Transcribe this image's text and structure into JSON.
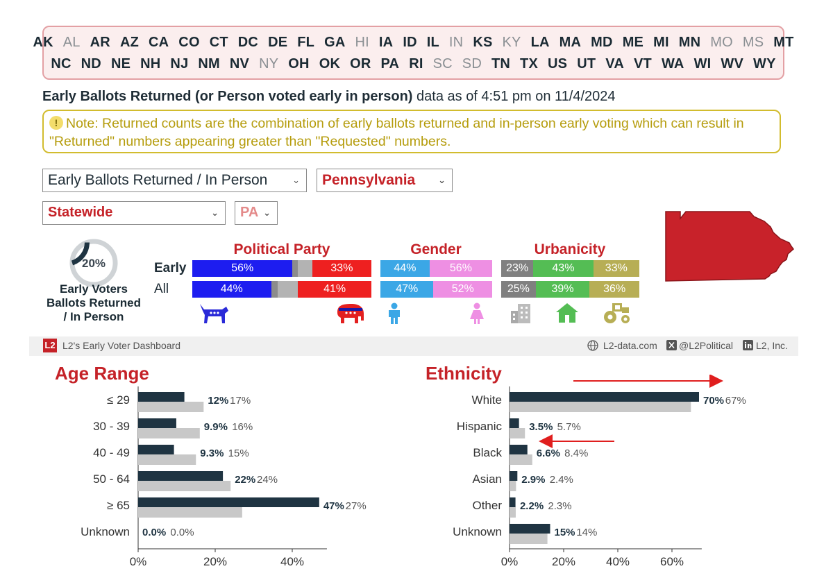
{
  "states": {
    "row1": [
      {
        "code": "AK",
        "active": true
      },
      {
        "code": "AL",
        "active": false
      },
      {
        "code": "AR",
        "active": true
      },
      {
        "code": "AZ",
        "active": true
      },
      {
        "code": "CA",
        "active": true
      },
      {
        "code": "CO",
        "active": true
      },
      {
        "code": "CT",
        "active": true
      },
      {
        "code": "DC",
        "active": true
      },
      {
        "code": "DE",
        "active": true
      },
      {
        "code": "FL",
        "active": true
      },
      {
        "code": "GA",
        "active": true
      },
      {
        "code": "HI",
        "active": false
      },
      {
        "code": "IA",
        "active": true
      },
      {
        "code": "ID",
        "active": true
      },
      {
        "code": "IL",
        "active": true
      },
      {
        "code": "IN",
        "active": false
      },
      {
        "code": "KS",
        "active": true
      },
      {
        "code": "KY",
        "active": false
      },
      {
        "code": "LA",
        "active": true
      },
      {
        "code": "MA",
        "active": true
      },
      {
        "code": "MD",
        "active": true
      },
      {
        "code": "ME",
        "active": true
      },
      {
        "code": "MI",
        "active": true
      },
      {
        "code": "MN",
        "active": true
      },
      {
        "code": "MO",
        "active": false
      },
      {
        "code": "MS",
        "active": false
      },
      {
        "code": "MT",
        "active": true
      }
    ],
    "row2": [
      {
        "code": "NC",
        "active": true
      },
      {
        "code": "ND",
        "active": true
      },
      {
        "code": "NE",
        "active": true
      },
      {
        "code": "NH",
        "active": true
      },
      {
        "code": "NJ",
        "active": true
      },
      {
        "code": "NM",
        "active": true
      },
      {
        "code": "NV",
        "active": true
      },
      {
        "code": "NY",
        "active": false
      },
      {
        "code": "OH",
        "active": true
      },
      {
        "code": "OK",
        "active": true
      },
      {
        "code": "OR",
        "active": true
      },
      {
        "code": "PA",
        "active": true
      },
      {
        "code": "RI",
        "active": true
      },
      {
        "code": "SC",
        "active": false
      },
      {
        "code": "SD",
        "active": false
      },
      {
        "code": "TN",
        "active": true
      },
      {
        "code": "TX",
        "active": true
      },
      {
        "code": "US",
        "active": true
      },
      {
        "code": "UT",
        "active": true
      },
      {
        "code": "VA",
        "active": true
      },
      {
        "code": "VT",
        "active": true
      },
      {
        "code": "WA",
        "active": true
      },
      {
        "code": "WI",
        "active": true
      },
      {
        "code": "WV",
        "active": true
      },
      {
        "code": "WY",
        "active": true
      }
    ]
  },
  "headline": {
    "bold": "Early Ballots Returned (or Person voted early in person)",
    "rest": " data as of 4:51 pm on 11/4/2024"
  },
  "note": {
    "icon": "!",
    "text": "Note: Returned counts are the combination of early ballots returned and in-person early voting which can result in \"Returned\" numbers appearing greater than \"Requested\" numbers."
  },
  "selects": {
    "type": "Early Ballots Returned / In Person",
    "state": "Pennsylvania",
    "district": "Statewide",
    "code": "PA",
    "caret": "⌄"
  },
  "summary": {
    "percent": "20%",
    "percent_value": 20,
    "label_line1": "Early Voters",
    "label_line2": "Ballots Returned",
    "label_line3": "/ In Person"
  },
  "breakdown": {
    "row_labels": {
      "early": "Early",
      "all": "All"
    },
    "sections": {
      "party": "Political Party",
      "gender": "Gender",
      "urbanicity": "Urbanicity"
    },
    "party": {
      "early": {
        "dem": "56%",
        "dem_value": 56,
        "other_value": 11,
        "rep": "33%",
        "rep_value": 33
      },
      "all": {
        "dem": "44%",
        "dem_value": 44,
        "other_value": 15,
        "rep": "41%",
        "rep_value": 41
      }
    },
    "gender": {
      "early": {
        "male": "44%",
        "male_value": 44,
        "female": "56%",
        "female_value": 56
      },
      "all": {
        "male": "47%",
        "male_value": 47,
        "female": "52%",
        "female_value": 52
      }
    },
    "urbanicity": {
      "early": {
        "urban": "23%",
        "urban_value": 23,
        "suburban": "43%",
        "suburban_value": 43,
        "rural": "33%",
        "rural_value": 33
      },
      "all": {
        "urban": "25%",
        "urban_value": 25,
        "suburban": "39%",
        "suburban_value": 39,
        "rural": "36%",
        "rural_value": 36
      }
    },
    "colors": {
      "dem": "#1d1df0",
      "rep": "#ee2020",
      "other1": "#8c8c8c",
      "other2": "#b3b3b3",
      "male": "#3ba7e6",
      "female": "#ee8fe3",
      "urban": "#808080",
      "suburban": "#54bd54",
      "rural": "#b7ae55"
    }
  },
  "footer": {
    "logo": "L2",
    "dashboard": "L2's Early Voter Dashboard",
    "site": "L2-data.com",
    "twitter": "@L2Political",
    "company": "L2, Inc."
  },
  "age_title": "Age Range",
  "ethnicity_title": "Ethnicity",
  "chart_data": [
    {
      "type": "bar",
      "title": "Age Range",
      "orientation": "horizontal",
      "categories": [
        "≤ 29",
        "30 - 39",
        "40 - 49",
        "50 - 64",
        "≥ 65",
        "Unknown"
      ],
      "series": [
        {
          "name": "Early",
          "values": [
            12,
            9.9,
            9.3,
            22,
            47,
            0.0
          ],
          "labels": [
            "12%",
            "9.9%",
            "9.3%",
            "22%",
            "47%",
            "0.0%"
          ],
          "color": "#1f3442"
        },
        {
          "name": "All",
          "values": [
            17,
            16,
            15,
            24,
            27,
            0.0
          ],
          "labels": [
            "17%",
            "16%",
            "15%",
            "24%",
            "27%",
            "0.0%"
          ],
          "color": "#c8c8c8"
        }
      ],
      "xlim": [
        0,
        49
      ],
      "xticks": [
        0,
        20,
        40
      ],
      "xtick_labels": [
        "0%",
        "20%",
        "40%"
      ]
    },
    {
      "type": "bar",
      "title": "Ethnicity",
      "orientation": "horizontal",
      "categories": [
        "White",
        "Hispanic",
        "Black",
        "Asian",
        "Other",
        "Unknown"
      ],
      "series": [
        {
          "name": "Early",
          "values": [
            70,
            3.5,
            6.6,
            2.9,
            2.2,
            15
          ],
          "labels": [
            "70%",
            "3.5%",
            "6.6%",
            "2.9%",
            "2.2%",
            "15%"
          ],
          "color": "#1f3442"
        },
        {
          "name": "All",
          "values": [
            67,
            5.7,
            8.4,
            2.4,
            2.3,
            14
          ],
          "labels": [
            "67%",
            "5.7%",
            "8.4%",
            "2.4%",
            "2.3%",
            "14%"
          ],
          "color": "#c8c8c8"
        }
      ],
      "xlim": [
        0,
        71
      ],
      "xticks": [
        0,
        20,
        40,
        60
      ],
      "xtick_labels": [
        "0%",
        "20%",
        "40%",
        "60%"
      ]
    }
  ]
}
